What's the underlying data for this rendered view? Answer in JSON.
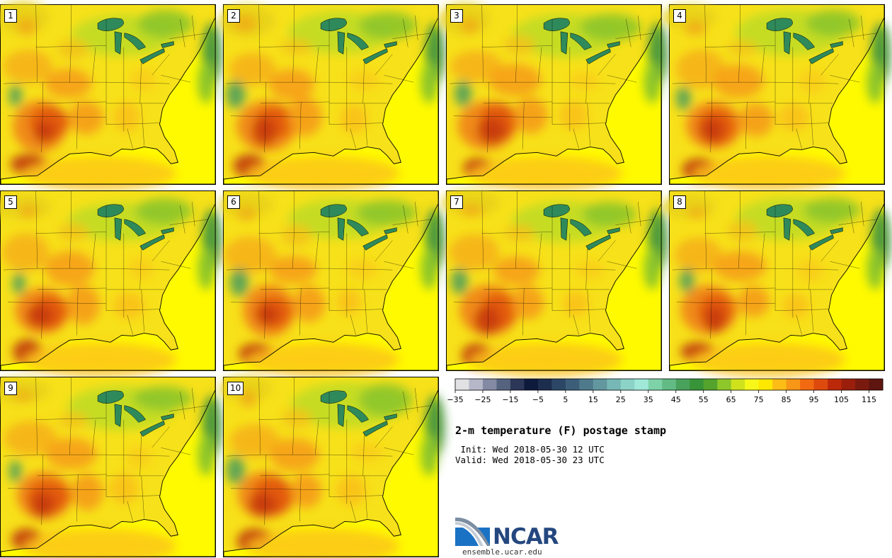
{
  "product": {
    "title": "2-m temperature (F) postage stamp",
    "init_line": " Init: Wed 2018-05-30 12 UTC",
    "valid_line": "Valid: Wed 2018-05-30 23 UTC"
  },
  "members": [
    {
      "label": "1"
    },
    {
      "label": "2"
    },
    {
      "label": "3"
    },
    {
      "label": "4"
    },
    {
      "label": "5"
    },
    {
      "label": "6"
    },
    {
      "label": "7"
    },
    {
      "label": "8"
    },
    {
      "label": "9"
    },
    {
      "label": "10"
    }
  ],
  "colorbar": {
    "units": "F",
    "tick_labels": [
      "−35",
      "−25",
      "−15",
      "−5",
      "5",
      "15",
      "25",
      "35",
      "45",
      "55",
      "65",
      "75",
      "85",
      "95",
      "105",
      "115"
    ],
    "colors": [
      "#e1e1e4",
      "#b6b7c8",
      "#848aa3",
      "#56637f",
      "#2c3656",
      "#0d1a3b",
      "#1c2d4d",
      "#2c4766",
      "#3c5e79",
      "#4f7a8c",
      "#62979f",
      "#77b7b5",
      "#8bd3c6",
      "#a0e8d8",
      "#7ed2a8",
      "#62bb84",
      "#49a25c",
      "#389438",
      "#53a32c",
      "#8dc72a",
      "#cfe21c",
      "#f7f719",
      "#ffe800",
      "#fdbd17",
      "#f89617",
      "#f16a11",
      "#de4a0d",
      "#bc290a",
      "#9b1e0c",
      "#7a1a0e",
      "#5f1510"
    ]
  },
  "logo": {
    "name": "NCAR",
    "url": "ensemble.ucar.edu"
  }
}
